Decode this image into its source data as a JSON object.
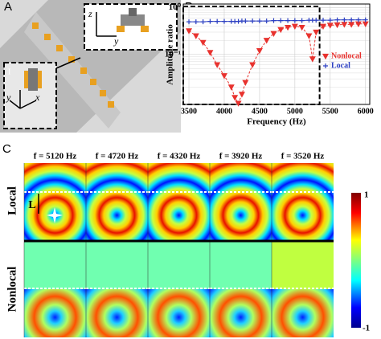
{
  "panels": {
    "a": "A",
    "b": "B",
    "c": "C"
  },
  "inset": {
    "z1": "z",
    "y1": "y",
    "ii": "II",
    "i": "I",
    "y2": "y",
    "x2": "x"
  },
  "chart_data": {
    "type": "line",
    "xlabel": "Frequency (Hz)",
    "ylabel": "Amplitude ratio",
    "log_y": true,
    "legend": "right",
    "x": [
      3500,
      3600,
      3700,
      3800,
      3900,
      4000,
      4100,
      4150,
      4200,
      4250,
      4300,
      4400,
      4500,
      4600,
      4700,
      4800,
      4900,
      5000,
      5100,
      5200,
      5250,
      5300,
      5400,
      5500,
      5600,
      5700,
      5800,
      5900,
      6000
    ],
    "series": [
      {
        "name": "Nonlocal",
        "color": "#e8322e",
        "marker": "triangle-down",
        "values": [
          0.32,
          0.25,
          0.18,
          0.11,
          0.06,
          0.035,
          0.02,
          0.012,
          0.009,
          0.014,
          0.025,
          0.06,
          0.12,
          0.2,
          0.28,
          0.34,
          0.38,
          0.4,
          0.38,
          0.25,
          0.08,
          0.3,
          0.4,
          0.42,
          0.43,
          0.44,
          0.44,
          0.45,
          0.45
        ]
      },
      {
        "name": "Local",
        "color": "#2b3fc2",
        "marker": "plus",
        "values": [
          0.5,
          0.5,
          0.5,
          0.51,
          0.51,
          0.51,
          0.51,
          0.51,
          0.51,
          0.52,
          0.52,
          0.52,
          0.52,
          0.52,
          0.53,
          0.53,
          0.53,
          0.53,
          0.53,
          0.54,
          0.54,
          0.54,
          0.54,
          0.54,
          0.55,
          0.55,
          0.55,
          0.55,
          0.55
        ]
      }
    ],
    "xlim": [
      3420,
      6060
    ],
    "xticks": [
      3500,
      4000,
      4500,
      5000,
      5500,
      6000
    ],
    "ylim": [
      0.0085,
      1.2
    ],
    "yticks": [
      {
        "value": 1,
        "label": "10⁰"
      },
      {
        "value": 0.1,
        "label": "10⁻¹"
      }
    ],
    "grid": true
  },
  "maps": {
    "columns": [
      "f = 5120 Hz",
      "f = 4720 Hz",
      "f = 4320 Hz",
      "f = 3920 Hz",
      "f = 3520 Hz"
    ],
    "rows": [
      "Local",
      "Nonlocal"
    ],
    "length_label": "L"
  },
  "colorbar": {
    "max": "1",
    "min": "-1"
  }
}
